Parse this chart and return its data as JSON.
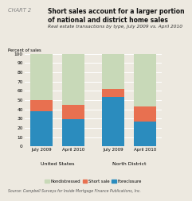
{
  "title_label": "CHART 2",
  "title": "Short sales account for a larger portion\nof national and district home sales",
  "subtitle": "Real estate transactions by type, July 2009 vs. April 2010",
  "ylabel": "Percent of sales",
  "ylim": [
    0,
    100
  ],
  "yticks": [
    0,
    10,
    20,
    30,
    40,
    50,
    60,
    70,
    80,
    90,
    100
  ],
  "bar_groups": [
    {
      "label": "July 2009",
      "group": "United States"
    },
    {
      "label": "April 2010",
      "group": "United States"
    },
    {
      "label": "July 2009",
      "group": "North District"
    },
    {
      "label": "April 2010",
      "group": "North District"
    }
  ],
  "foreclosure": [
    38,
    29,
    53,
    27
  ],
  "short_sale": [
    12,
    16,
    9,
    16
  ],
  "nondistressed": [
    50,
    55,
    38,
    57
  ],
  "colors": {
    "nondistressed": "#c8d9b8",
    "short_sale": "#e87050",
    "foreclosure": "#2b8cbe"
  },
  "legend_labels": [
    "Nondistressed",
    "Short sale",
    "Foreclosure"
  ],
  "source": "Source: Campbell Surveys for Inside Mortgage Finance Publications, Inc.",
  "group_labels": [
    "United States",
    "North District"
  ],
  "background_color": "#ede9e0",
  "grid_color": "#ffffff",
  "bar_width": 0.6
}
